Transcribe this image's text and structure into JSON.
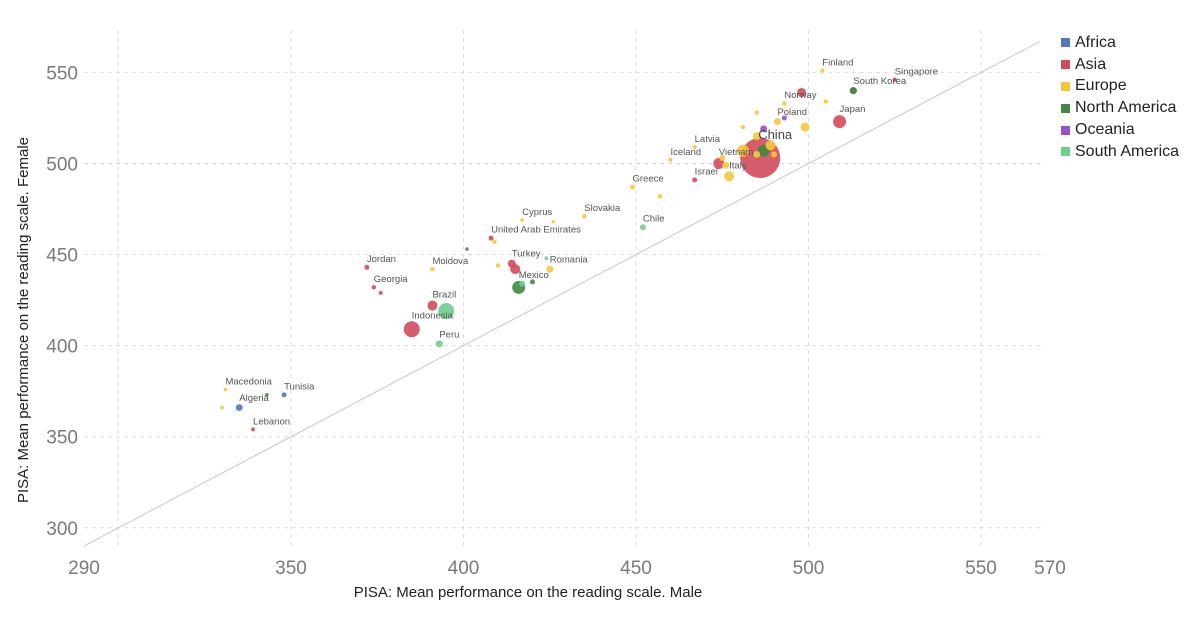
{
  "chart_data": {
    "type": "scatter",
    "title": "",
    "xlabel": "PISA: Mean performance on the reading scale. Male",
    "ylabel": "PISA: Mean performance on the reading scale. Female",
    "xlim": [
      290,
      570
    ],
    "ylim": [
      290,
      570
    ],
    "xticks": [
      290,
      350,
      400,
      450,
      500,
      550,
      570
    ],
    "yticks": [
      300,
      350,
      400,
      450,
      500,
      550
    ],
    "grid": true,
    "reference_line": "y = x",
    "legend_position": "right",
    "regions": [
      {
        "name": "Africa",
        "color": "#5677bf"
      },
      {
        "name": "Asia",
        "color": "#d34a5c"
      },
      {
        "name": "Europe",
        "color": "#f5c73a"
      },
      {
        "name": "North America",
        "color": "#3f8a44"
      },
      {
        "name": "Oceania",
        "color": "#9b4fc7"
      },
      {
        "name": "South America",
        "color": "#6ccf8f"
      }
    ],
    "points": [
      {
        "label": "Finland",
        "x": 504,
        "y": 551,
        "region": "Europe",
        "size": 2
      },
      {
        "label": "Singapore",
        "x": 525,
        "y": 546,
        "region": "Asia",
        "size": 2.2
      },
      {
        "label": "South Korea",
        "x": 513,
        "y": 540,
        "region": "Asia",
        "size": 3.5
      },
      {
        "label": "",
        "x": 513,
        "y": 540,
        "region": "North America",
        "size": 3.5
      },
      {
        "label": "",
        "x": 498,
        "y": 539,
        "region": "Asia",
        "size": 4.5
      },
      {
        "label": "Norway",
        "x": 493,
        "y": 533,
        "region": "Europe",
        "size": 2.2
      },
      {
        "label": "",
        "x": 505,
        "y": 534,
        "region": "Europe",
        "size": 2.2
      },
      {
        "label": "",
        "x": 485,
        "y": 528,
        "region": "Europe",
        "size": 2.2
      },
      {
        "label": "Japan",
        "x": 509,
        "y": 523,
        "region": "Asia",
        "size": 6.5
      },
      {
        "label": "Poland",
        "x": 491,
        "y": 523,
        "region": "Europe",
        "size": 3.5
      },
      {
        "label": "",
        "x": 493,
        "y": 525,
        "region": "Oceania",
        "size": 2.5
      },
      {
        "label": "",
        "x": 499,
        "y": 520,
        "region": "Europe",
        "size": 4.5
      },
      {
        "label": "",
        "x": 481,
        "y": 520,
        "region": "Europe",
        "size": 2.2
      },
      {
        "label": "",
        "x": 487,
        "y": 519,
        "region": "Oceania",
        "size": 3.5
      },
      {
        "label": "China",
        "x": 486,
        "y": 503,
        "region": "Asia",
        "size": 20
      },
      {
        "label": "",
        "x": 485,
        "y": 515,
        "region": "Europe",
        "size": 4
      },
      {
        "label": "",
        "x": 489,
        "y": 510,
        "region": "Europe",
        "size": 5
      },
      {
        "label": "",
        "x": 487,
        "y": 507,
        "region": "North America",
        "size": 6
      },
      {
        "label": "",
        "x": 481,
        "y": 507,
        "region": "Europe",
        "size": 6
      },
      {
        "label": "",
        "x": 485,
        "y": 505,
        "region": "Europe",
        "size": 3.5
      },
      {
        "label": "",
        "x": 490,
        "y": 505,
        "region": "Europe",
        "size": 3
      },
      {
        "label": "",
        "x": 475,
        "y": 503,
        "region": "Europe",
        "size": 3
      },
      {
        "label": "Latvia",
        "x": 467,
        "y": 509,
        "region": "Europe",
        "size": 2
      },
      {
        "label": "Vietnam",
        "x": 474,
        "y": 500,
        "region": "Asia",
        "size": 5.5
      },
      {
        "label": "",
        "x": 476,
        "y": 499,
        "region": "Europe",
        "size": 3.5
      },
      {
        "label": "Iceland",
        "x": 460,
        "y": 502,
        "region": "Europe",
        "size": 2
      },
      {
        "label": "Italy",
        "x": 477,
        "y": 493,
        "region": "Europe",
        "size": 5
      },
      {
        "label": "Israel",
        "x": 467,
        "y": 491,
        "region": "Asia",
        "size": 2.5
      },
      {
        "label": "Greece",
        "x": 449,
        "y": 487,
        "region": "Europe",
        "size": 2.5
      },
      {
        "label": "",
        "x": 457,
        "y": 482,
        "region": "Europe",
        "size": 2.2
      },
      {
        "label": "Slovakia",
        "x": 435,
        "y": 471,
        "region": "Europe",
        "size": 2.2
      },
      {
        "label": "Cyprus",
        "x": 417,
        "y": 469,
        "region": "Europe",
        "size": 1.8
      },
      {
        "label": "",
        "x": 426,
        "y": 468,
        "region": "Europe",
        "size": 1.8
      },
      {
        "label": "Chile",
        "x": 452,
        "y": 465,
        "region": "South America",
        "size": 3
      },
      {
        "label": "United Arab Emirates",
        "x": 408,
        "y": 459,
        "region": "Asia",
        "size": 2.5
      },
      {
        "label": "",
        "x": 409,
        "y": 457,
        "region": "Europe",
        "size": 2.2
      },
      {
        "label": "",
        "x": 401,
        "y": 453,
        "region": "Africa",
        "size": 1.8
      },
      {
        "label": "Jordan",
        "x": 372,
        "y": 443,
        "region": "Asia",
        "size": 2.5
      },
      {
        "label": "Moldova",
        "x": 391,
        "y": 442,
        "region": "Europe",
        "size": 2.2
      },
      {
        "label": "",
        "x": 410,
        "y": 444,
        "region": "Europe",
        "size": 2.2
      },
      {
        "label": "Turkey",
        "x": 414,
        "y": 445,
        "region": "Asia",
        "size": 4
      },
      {
        "label": "",
        "x": 415,
        "y": 442,
        "region": "Asia",
        "size": 5
      },
      {
        "label": "Romania",
        "x": 425,
        "y": 442,
        "region": "Europe",
        "size": 3.5
      },
      {
        "label": "",
        "x": 424,
        "y": 448,
        "region": "South America",
        "size": 1.8
      },
      {
        "label": "Mexico",
        "x": 416,
        "y": 432,
        "region": "North America",
        "size": 6.5
      },
      {
        "label": "",
        "x": 420,
        "y": 435,
        "region": "North America",
        "size": 2.5
      },
      {
        "label": "",
        "x": 417,
        "y": 434,
        "region": "South America",
        "size": 3
      },
      {
        "label": "Georgia",
        "x": 374,
        "y": 432,
        "region": "Asia",
        "size": 2.2
      },
      {
        "label": "",
        "x": 376,
        "y": 429,
        "region": "Asia",
        "size": 2
      },
      {
        "label": "Brazil",
        "x": 391,
        "y": 422,
        "region": "Asia",
        "size": 5
      },
      {
        "label": "",
        "x": 395,
        "y": 419,
        "region": "South America",
        "size": 8
      },
      {
        "label": "Indonesia",
        "x": 385,
        "y": 409,
        "region": "Asia",
        "size": 8
      },
      {
        "label": "Peru",
        "x": 393,
        "y": 401,
        "region": "South America",
        "size": 3.5
      },
      {
        "label": "Macedonia",
        "x": 331,
        "y": 376,
        "region": "Europe",
        "size": 1.8
      },
      {
        "label": "Tunisia",
        "x": 348,
        "y": 373,
        "region": "Africa",
        "size": 2.5
      },
      {
        "label": "",
        "x": 343,
        "y": 373,
        "region": "North America",
        "size": 1.8
      },
      {
        "label": "Algeria",
        "x": 335,
        "y": 366,
        "region": "Africa",
        "size": 3.5
      },
      {
        "label": "",
        "x": 330,
        "y": 366,
        "region": "Europe",
        "size": 1.8
      },
      {
        "label": "Lebanon",
        "x": 339,
        "y": 354,
        "region": "Asia",
        "size": 2
      }
    ]
  }
}
